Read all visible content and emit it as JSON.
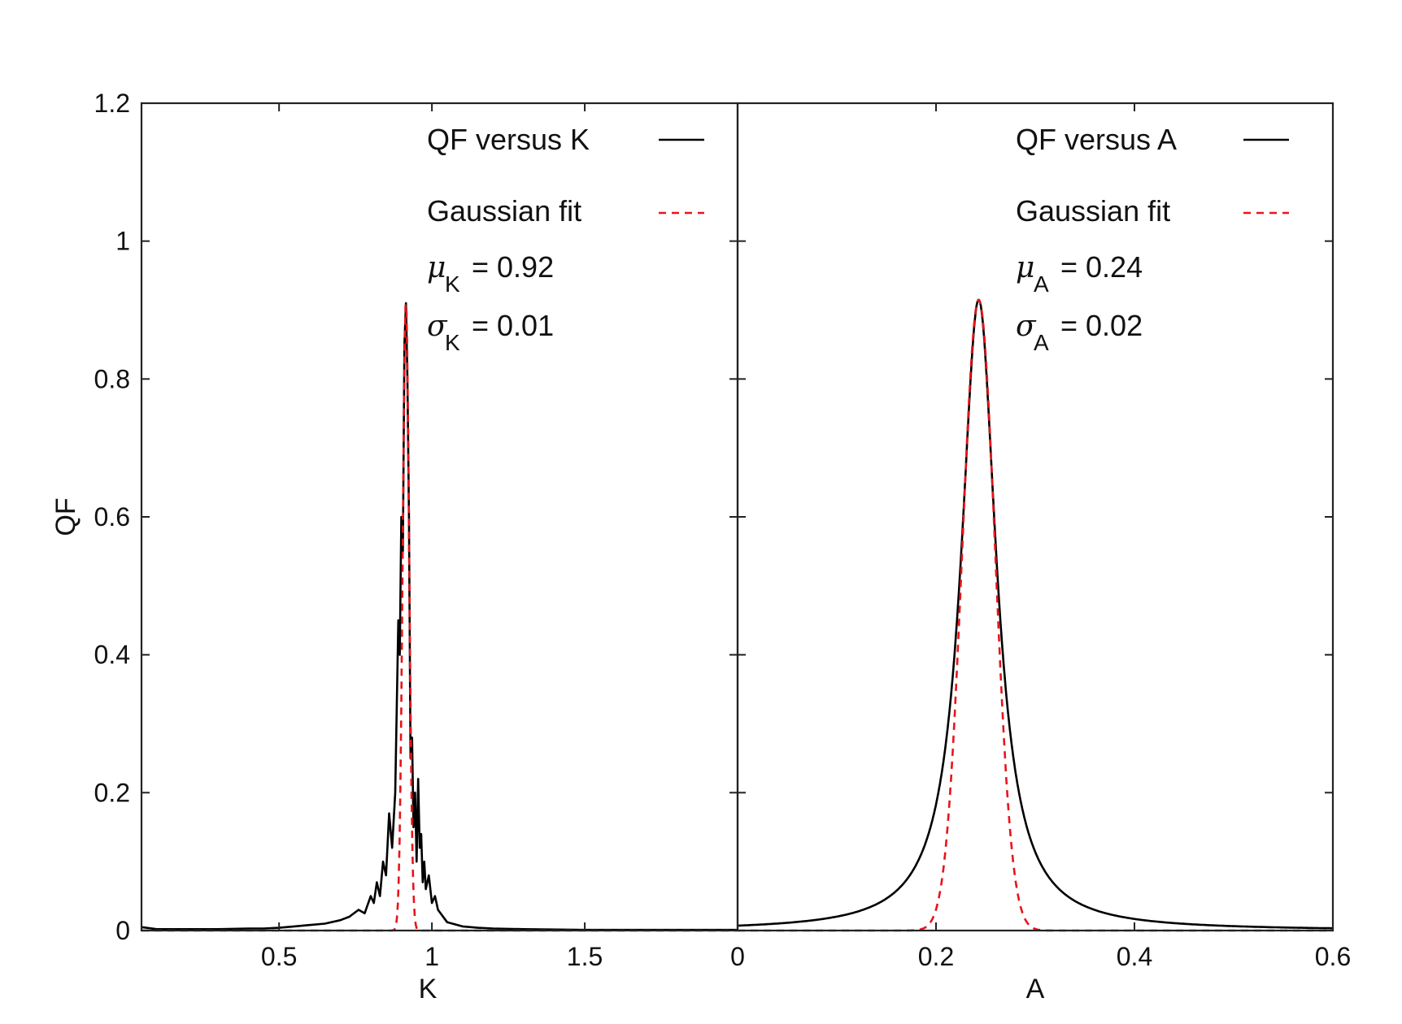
{
  "colors": {
    "qf": "#000000",
    "gauss": "#e8141a",
    "axis": "#222222"
  },
  "chart_data": [
    {
      "id": "left",
      "type": "line",
      "xlabel": "K",
      "ylabel": "QF",
      "xlim": [
        0.05,
        2.0
      ],
      "ylim": [
        0,
        1.2
      ],
      "xticks": [
        0.5,
        1,
        1.5
      ],
      "xtick_labels": [
        "0.5",
        "1",
        "1.5"
      ],
      "yticks": [
        0,
        0.2,
        0.4,
        0.6,
        0.8,
        1,
        1.2
      ],
      "ytick_labels": [
        "0",
        "0.2",
        "0.4",
        "0.6",
        "0.8",
        "1",
        "1.2"
      ],
      "legend": {
        "position": "top-right",
        "entries": [
          "QF versus K",
          "Gaussian fit"
        ]
      },
      "stats": {
        "mu_sub": "K",
        "mu_value": "= 0.92",
        "sigma_sub": "K",
        "sigma_value": "= 0.01"
      },
      "series": [
        {
          "name": "QF versus K",
          "style": "solid",
          "x": [
            0.05,
            0.1,
            0.2,
            0.3,
            0.4,
            0.45,
            0.5,
            0.55,
            0.6,
            0.65,
            0.7,
            0.73,
            0.76,
            0.78,
            0.8,
            0.81,
            0.82,
            0.83,
            0.84,
            0.85,
            0.86,
            0.87,
            0.88,
            0.89,
            0.895,
            0.9,
            0.905,
            0.91,
            0.915,
            0.92,
            0.925,
            0.93,
            0.935,
            0.94,
            0.945,
            0.95,
            0.955,
            0.96,
            0.965,
            0.97,
            0.975,
            0.98,
            0.99,
            1.0,
            1.01,
            1.02,
            1.05,
            1.1,
            1.15,
            1.2,
            1.3,
            1.5,
            1.8,
            2.0
          ],
          "y": [
            0.005,
            0.002,
            0.002,
            0.002,
            0.003,
            0.003,
            0.004,
            0.006,
            0.008,
            0.01,
            0.015,
            0.02,
            0.03,
            0.025,
            0.05,
            0.04,
            0.07,
            0.05,
            0.1,
            0.08,
            0.17,
            0.12,
            0.2,
            0.45,
            0.4,
            0.6,
            0.55,
            0.85,
            0.91,
            0.8,
            0.6,
            0.25,
            0.28,
            0.15,
            0.2,
            0.1,
            0.22,
            0.12,
            0.14,
            0.07,
            0.1,
            0.06,
            0.08,
            0.04,
            0.05,
            0.03,
            0.012,
            0.006,
            0.004,
            0.003,
            0.002,
            0.001,
            0.001,
            0.001
          ]
        },
        {
          "name": "Gaussian fit",
          "style": "dashed",
          "gaussian": {
            "amplitude": 0.915,
            "mu": 0.915,
            "sigma": 0.0105
          }
        }
      ]
    },
    {
      "id": "right",
      "type": "line",
      "xlabel": "A",
      "ylabel": "",
      "xlim": [
        0,
        0.6
      ],
      "ylim": [
        0,
        1.2
      ],
      "xticks": [
        0,
        0.2,
        0.4,
        0.6
      ],
      "xtick_labels": [
        "0",
        "0.2",
        "0.4",
        "0.6"
      ],
      "yticks": [
        0,
        0.2,
        0.4,
        0.6,
        0.8,
        1,
        1.2
      ],
      "ytick_labels": [],
      "legend": {
        "position": "top-right",
        "entries": [
          "QF versus A",
          "Gaussian fit"
        ]
      },
      "stats": {
        "mu_sub": "A",
        "mu_value": "= 0.24",
        "sigma_sub": "A",
        "sigma_value": "= 0.02"
      },
      "series": [
        {
          "name": "QF versus A",
          "style": "solid",
          "lorentzian": {
            "amplitude": 0.915,
            "center": 0.243,
            "gamma": 0.0215
          }
        },
        {
          "name": "Gaussian fit",
          "style": "dashed",
          "gaussian": {
            "amplitude": 0.915,
            "mu": 0.243,
            "sigma": 0.0165
          }
        }
      ]
    }
  ]
}
